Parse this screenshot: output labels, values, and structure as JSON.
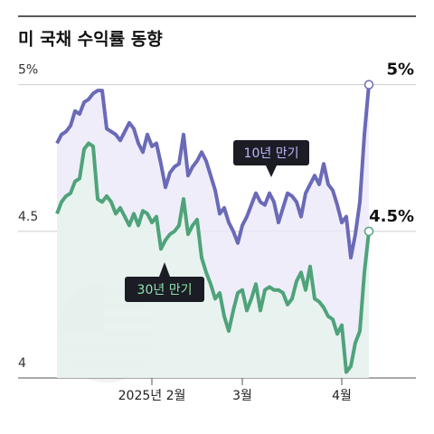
{
  "chart_data": {
    "type": "line",
    "title": "미 국채 수익률 동향",
    "categories": [
      null,
      null,
      null,
      null,
      null,
      null,
      null,
      null,
      null,
      null,
      null,
      null,
      null,
      null,
      null,
      null,
      null,
      null,
      null,
      null,
      null,
      "2025년 2월",
      null,
      null,
      null,
      null,
      null,
      null,
      null,
      null,
      null,
      null,
      null,
      null,
      null,
      null,
      null,
      null,
      null,
      null,
      null,
      "3월",
      null,
      null,
      null,
      null,
      null,
      null,
      null,
      null,
      null,
      null,
      null,
      null,
      null,
      null,
      null,
      null,
      null,
      null,
      null,
      null,
      null,
      "4월",
      null,
      null,
      null,
      null,
      null,
      null
    ],
    "series": [
      {
        "name": "10년 만기",
        "color": "#6a6ab8",
        "values": [
          4.8,
          4.83,
          4.84,
          4.86,
          4.91,
          4.9,
          4.94,
          4.95,
          4.97,
          4.98,
          4.98,
          4.85,
          4.84,
          4.83,
          4.81,
          4.84,
          4.87,
          4.85,
          4.8,
          4.77,
          4.83,
          4.79,
          4.8,
          4.73,
          4.65,
          4.7,
          4.72,
          4.73,
          4.83,
          4.69,
          4.72,
          4.74,
          4.77,
          4.74,
          4.69,
          4.64,
          4.56,
          4.58,
          4.53,
          4.5,
          4.46,
          4.52,
          4.55,
          4.59,
          4.63,
          4.6,
          4.59,
          4.63,
          4.6,
          4.53,
          4.58,
          4.63,
          4.62,
          4.6,
          4.55,
          4.63,
          4.66,
          4.69,
          4.66,
          4.73,
          4.66,
          4.64,
          4.59,
          4.53,
          4.55,
          4.41,
          4.49,
          4.6,
          4.83,
          5
        ],
        "value_labels": [
          null,
          null,
          null,
          null,
          null,
          null,
          null,
          null,
          null,
          null,
          null,
          null,
          null,
          null,
          null,
          null,
          null,
          null,
          null,
          null,
          null,
          null,
          null,
          null,
          null,
          null,
          null,
          null,
          null,
          null,
          null,
          null,
          null,
          null,
          null,
          null,
          null,
          null,
          null,
          null,
          null,
          null,
          null,
          null,
          null,
          null,
          null,
          null,
          null,
          null,
          null,
          null,
          null,
          null,
          null,
          null,
          null,
          null,
          null,
          null,
          null,
          null,
          null,
          null,
          null,
          null,
          null,
          null,
          null,
          "5%"
        ]
      },
      {
        "name": "30년 만기",
        "color": "#4fa37a",
        "values": [
          4.56,
          4.6,
          4.62,
          4.63,
          4.67,
          4.68,
          4.78,
          4.8,
          4.79,
          4.61,
          4.6,
          4.62,
          4.6,
          4.56,
          4.58,
          4.55,
          4.52,
          4.56,
          4.52,
          4.57,
          4.56,
          4.53,
          4.55,
          4.44,
          4.47,
          4.49,
          4.5,
          4.52,
          4.61,
          4.49,
          4.52,
          4.54,
          4.41,
          4.36,
          4.32,
          4.27,
          4.29,
          4.21,
          4.16,
          4.23,
          4.29,
          4.3,
          4.23,
          4.27,
          4.32,
          4.23,
          4.3,
          4.31,
          4.3,
          4.3,
          4.29,
          4.25,
          4.27,
          4.33,
          4.36,
          4.3,
          4.38,
          4.27,
          4.26,
          4.24,
          4.21,
          4.2,
          4.15,
          4.18,
          4.02,
          4.04,
          4.12,
          4.16,
          4.36,
          4.5
        ],
        "value_labels": [
          null,
          null,
          null,
          null,
          null,
          null,
          null,
          null,
          null,
          null,
          null,
          null,
          null,
          null,
          null,
          null,
          null,
          null,
          null,
          null,
          null,
          null,
          null,
          null,
          null,
          null,
          null,
          null,
          null,
          null,
          null,
          null,
          null,
          null,
          null,
          null,
          null,
          null,
          null,
          null,
          null,
          null,
          null,
          null,
          null,
          null,
          null,
          null,
          null,
          null,
          null,
          null,
          null,
          null,
          null,
          null,
          null,
          null,
          null,
          null,
          null,
          null,
          null,
          null,
          null,
          null,
          null,
          null,
          null,
          "4.5%"
        ]
      }
    ],
    "ylim": [
      4,
      5.15
    ],
    "yticks": [
      4,
      4.5,
      {
        "value": 5,
        "label": "5%"
      }
    ],
    "grid": true
  }
}
